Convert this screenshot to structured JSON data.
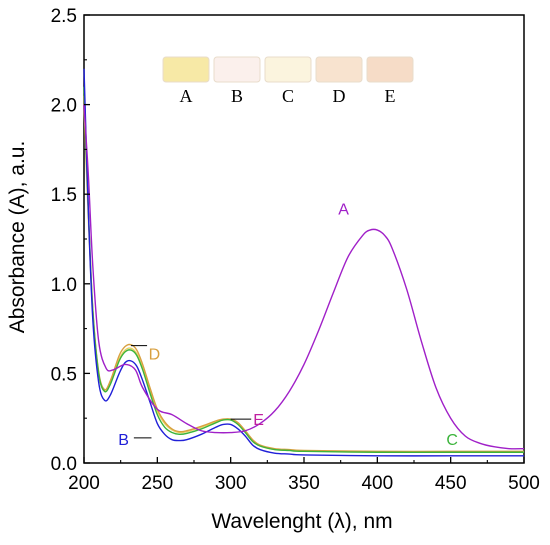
{
  "chart_data": {
    "type": "line",
    "title": "",
    "xlabel": "Wavelenght (λ), nm",
    "ylabel": "Absorbance (A), a.u.",
    "xlim": [
      200,
      500
    ],
    "ylim": [
      0,
      2.5
    ],
    "xticks": [
      "200",
      "250",
      "300",
      "350",
      "400",
      "450",
      "500"
    ],
    "yticks": [
      "0.0",
      "0.5",
      "1.0",
      "1.5",
      "2.0",
      "2.5"
    ],
    "grid": false,
    "swatches": [
      {
        "label": "A",
        "color": "#f7e9a6"
      },
      {
        "label": "B",
        "color": "#fbf0ec"
      },
      {
        "label": "C",
        "color": "#fbf4de"
      },
      {
        "label": "D",
        "color": "#f8e3cf"
      },
      {
        "label": "E",
        "color": "#f6dcc7"
      }
    ],
    "series": [
      {
        "name": "A",
        "color": "#a020c8",
        "x": [
          200,
          203,
          206,
          210,
          215,
          220,
          228,
          235,
          240,
          250,
          260,
          270,
          280,
          290,
          300,
          310,
          320,
          330,
          340,
          350,
          360,
          370,
          380,
          390,
          395,
          400,
          405,
          410,
          420,
          430,
          440,
          450,
          460,
          470,
          480,
          490,
          500
        ],
        "y": [
          2.0,
          1.6,
          1.1,
          0.68,
          0.53,
          0.52,
          0.55,
          0.52,
          0.42,
          0.3,
          0.27,
          0.22,
          0.18,
          0.17,
          0.17,
          0.18,
          0.22,
          0.29,
          0.4,
          0.55,
          0.74,
          0.95,
          1.15,
          1.27,
          1.3,
          1.3,
          1.27,
          1.2,
          0.97,
          0.68,
          0.42,
          0.25,
          0.15,
          0.11,
          0.09,
          0.08,
          0.08
        ]
      },
      {
        "name": "B",
        "color": "#2020d8",
        "x": [
          200,
          203,
          206,
          210,
          214,
          218,
          224,
          228,
          232,
          236,
          240,
          245,
          250,
          255,
          260,
          265,
          270,
          280,
          290,
          295,
          300,
          305,
          310,
          315,
          320,
          330,
          340,
          350,
          400,
          450,
          500
        ],
        "y": [
          2.2,
          1.4,
          0.8,
          0.45,
          0.35,
          0.38,
          0.5,
          0.56,
          0.57,
          0.54,
          0.46,
          0.34,
          0.22,
          0.16,
          0.13,
          0.125,
          0.13,
          0.16,
          0.2,
          0.215,
          0.215,
          0.19,
          0.15,
          0.1,
          0.075,
          0.055,
          0.05,
          0.045,
          0.04,
          0.04,
          0.04
        ]
      },
      {
        "name": "C",
        "color": "#3cb43c",
        "x": [
          200,
          203,
          206,
          210,
          214,
          218,
          224,
          228,
          232,
          236,
          240,
          245,
          250,
          255,
          260,
          265,
          270,
          280,
          290,
          295,
          300,
          305,
          310,
          315,
          320,
          330,
          340,
          350,
          400,
          450,
          500
        ],
        "y": [
          2.1,
          1.4,
          0.85,
          0.5,
          0.4,
          0.44,
          0.57,
          0.62,
          0.63,
          0.6,
          0.52,
          0.39,
          0.27,
          0.2,
          0.17,
          0.16,
          0.165,
          0.19,
          0.225,
          0.24,
          0.24,
          0.215,
          0.17,
          0.12,
          0.095,
          0.075,
          0.07,
          0.065,
          0.06,
          0.06,
          0.06
        ]
      },
      {
        "name": "D",
        "color": "#d8a040",
        "x": [
          200,
          203,
          206,
          210,
          214,
          218,
          224,
          228,
          232,
          236,
          240,
          245,
          250,
          255,
          260,
          265,
          270,
          280,
          290,
          295,
          300,
          305,
          310,
          315,
          320,
          330,
          340,
          350,
          400,
          450,
          500
        ],
        "y": [
          2.05,
          1.4,
          0.86,
          0.51,
          0.41,
          0.46,
          0.6,
          0.65,
          0.66,
          0.63,
          0.55,
          0.42,
          0.3,
          0.23,
          0.19,
          0.175,
          0.18,
          0.205,
          0.235,
          0.245,
          0.245,
          0.225,
          0.18,
          0.13,
          0.1,
          0.08,
          0.075,
          0.07,
          0.065,
          0.065,
          0.065
        ]
      },
      {
        "name": "E",
        "color": "#e8d060",
        "x": [
          200,
          203,
          206,
          210,
          214,
          218,
          224,
          228,
          232,
          236,
          240,
          245,
          250,
          255,
          260,
          265,
          270,
          280,
          290,
          295,
          300,
          305,
          310,
          315,
          320,
          330,
          340,
          350,
          400,
          450,
          500
        ],
        "y": [
          2.0,
          1.35,
          0.85,
          0.5,
          0.4,
          0.45,
          0.58,
          0.63,
          0.64,
          0.61,
          0.53,
          0.41,
          0.29,
          0.22,
          0.185,
          0.17,
          0.175,
          0.2,
          0.23,
          0.24,
          0.24,
          0.22,
          0.175,
          0.125,
          0.095,
          0.075,
          0.07,
          0.068,
          0.062,
          0.062,
          0.062
        ]
      }
    ],
    "annotations": [
      {
        "text": "A",
        "color": "#a020c8",
        "x": 377,
        "y": 1.42,
        "lead": []
      },
      {
        "text": "D",
        "color": "#d8a040",
        "x": 248,
        "y": 0.61,
        "lead": [
          [
            232,
            0.655
          ],
          [
            243,
            0.655
          ]
        ]
      },
      {
        "text": "E",
        "color": "#c020a0",
        "x": 319,
        "y": 0.245,
        "lead": [
          [
            300,
            0.245
          ],
          [
            314,
            0.245
          ]
        ]
      },
      {
        "text": "B",
        "color": "#2020d8",
        "x": 227,
        "y": 0.135,
        "lead": [
          [
            234,
            0.14
          ],
          [
            246,
            0.14
          ]
        ]
      },
      {
        "text": "C",
        "color": "#3cb43c",
        "x": 451,
        "y": 0.135,
        "lead": []
      }
    ]
  }
}
